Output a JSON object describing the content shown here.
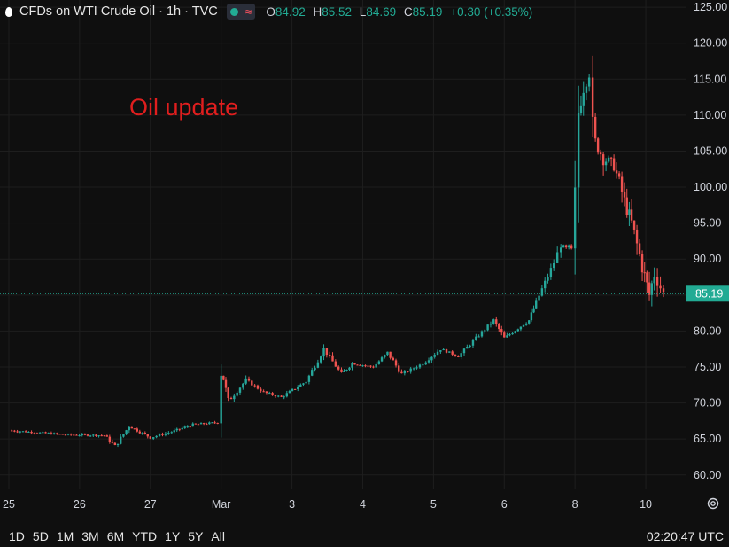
{
  "header": {
    "title": "CFDs on WTI Crude Oil · 1h · TVC",
    "ohlc": [
      {
        "k": "O",
        "v": "84.92"
      },
      {
        "k": "H",
        "v": "85.52"
      },
      {
        "k": "L",
        "v": "84.69"
      },
      {
        "k": "C",
        "v": "85.19"
      }
    ],
    "change": "+0.30 (+0.35%)"
  },
  "annotation": "Oil update",
  "colors": {
    "up": "#26a69a",
    "down": "#ef5350",
    "grid": "#1e1e1e",
    "axis_text": "#d1d4dc",
    "last_price_bg": "#22ab94"
  },
  "timeframes": [
    "1D",
    "5D",
    "1M",
    "3M",
    "6M",
    "YTD",
    "1Y",
    "5Y",
    "All"
  ],
  "clock": "02:20:47 UTC",
  "chart_data": {
    "type": "candlestick",
    "y_ticks": [
      60,
      65,
      70,
      75,
      80,
      85,
      90,
      95,
      100,
      105,
      110,
      115,
      120,
      125
    ],
    "y_tick_labels": [
      "60.00",
      "65.00",
      "70.00",
      "75.00",
      "80.00",
      "85.00",
      "90.00",
      "95.00",
      "100.00",
      "105.00",
      "110.00",
      "115.00",
      "120.00",
      "125.00"
    ],
    "ylim": [
      58,
      126
    ],
    "x_labels": [
      {
        "t": 0,
        "label": "25"
      },
      {
        "t": 1,
        "label": "26"
      },
      {
        "t": 2,
        "label": "27"
      },
      {
        "t": 3,
        "label": "Mar"
      },
      {
        "t": 4,
        "label": "3"
      },
      {
        "t": 5,
        "label": "4"
      },
      {
        "t": 6,
        "label": "5"
      },
      {
        "t": 7,
        "label": "6"
      },
      {
        "t": 8,
        "label": "8"
      },
      {
        "t": 9,
        "label": "10"
      }
    ],
    "xlim": [
      -0.05,
      9.5
    ],
    "last_price": 85.19,
    "last_price_label": "85.19",
    "grid": true,
    "series": [
      {
        "t": 0.0,
        "c": 66.2
      },
      {
        "t": 0.8,
        "c": 65.6
      },
      {
        "t": 1.35,
        "c": 65.5
      },
      {
        "t": 1.5,
        "c": 64.0
      },
      {
        "t": 1.7,
        "c": 66.8
      },
      {
        "t": 2.0,
        "c": 65.2
      },
      {
        "t": 2.3,
        "c": 66.0
      },
      {
        "t": 2.6,
        "c": 67.0
      },
      {
        "t": 2.95,
        "c": 67.3
      },
      {
        "t": 3.0,
        "c": 75.0
      },
      {
        "t": 3.1,
        "c": 70.2
      },
      {
        "t": 3.35,
        "c": 73.2
      },
      {
        "t": 3.6,
        "c": 71.5
      },
      {
        "t": 3.85,
        "c": 70.8
      },
      {
        "t": 4.2,
        "c": 73.0
      },
      {
        "t": 4.45,
        "c": 77.5
      },
      {
        "t": 4.7,
        "c": 74.0
      },
      {
        "t": 4.85,
        "c": 75.5
      },
      {
        "t": 5.15,
        "c": 75.0
      },
      {
        "t": 5.35,
        "c": 77.0
      },
      {
        "t": 5.55,
        "c": 74.0
      },
      {
        "t": 5.85,
        "c": 75.5
      },
      {
        "t": 6.1,
        "c": 77.5
      },
      {
        "t": 6.35,
        "c": 76.5
      },
      {
        "t": 6.6,
        "c": 79.0
      },
      {
        "t": 6.85,
        "c": 81.5
      },
      {
        "t": 7.0,
        "c": 79.0
      },
      {
        "t": 7.35,
        "c": 81.5
      },
      {
        "t": 7.45,
        "c": 84.0
      },
      {
        "t": 7.7,
        "c": 89.5
      },
      {
        "t": 7.8,
        "c": 92.0
      },
      {
        "t": 7.95,
        "c": 91.0
      },
      {
        "t": 8.0,
        "c": 98.0
      },
      {
        "t": 8.05,
        "c": 110.5
      },
      {
        "t": 8.12,
        "c": 114.0
      },
      {
        "t": 8.2,
        "c": 116.0
      },
      {
        "t": 8.25,
        "c": 107.0
      },
      {
        "t": 8.4,
        "c": 104.0
      },
      {
        "t": 8.55,
        "c": 103.0
      },
      {
        "t": 8.7,
        "c": 98.0
      },
      {
        "t": 8.8,
        "c": 95.0
      },
      {
        "t": 8.95,
        "c": 89.0
      },
      {
        "t": 9.05,
        "c": 85.0
      },
      {
        "t": 9.12,
        "c": 88.0
      },
      {
        "t": 9.25,
        "c": 85.19
      }
    ]
  }
}
